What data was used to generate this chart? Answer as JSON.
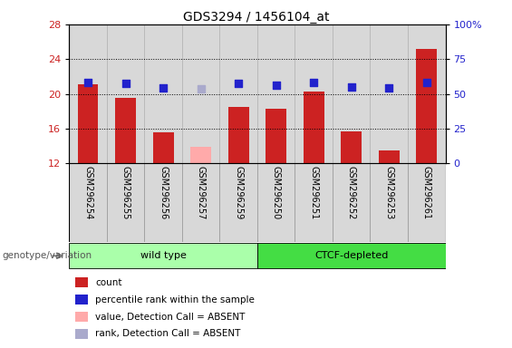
{
  "title": "GDS3294 / 1456104_at",
  "samples": [
    "GSM296254",
    "GSM296255",
    "GSM296256",
    "GSM296257",
    "GSM296259",
    "GSM296250",
    "GSM296251",
    "GSM296252",
    "GSM296253",
    "GSM296261"
  ],
  "bar_values": [
    21.1,
    19.5,
    15.6,
    null,
    18.5,
    18.3,
    20.3,
    15.7,
    13.5,
    25.2
  ],
  "absent_bar_value": 13.9,
  "absent_bar_index": 3,
  "bar_color": "#cc2222",
  "absent_bar_color": "#ffaaaa",
  "dot_values": [
    21.3,
    21.2,
    20.7,
    20.6,
    21.2,
    21.0,
    21.3,
    20.8,
    20.7,
    21.3
  ],
  "absent_dot_index": 3,
  "absent_dot_value": 20.6,
  "dot_color": "#2222cc",
  "absent_dot_color": "#aaaacc",
  "ylim_left": [
    12,
    28
  ],
  "yticks_left": [
    12,
    16,
    20,
    24,
    28
  ],
  "ylim_right": [
    0,
    100
  ],
  "yticks_right": [
    0,
    25,
    50,
    75,
    100
  ],
  "ytick_labels_right": [
    "0",
    "25",
    "50",
    "75",
    "100%"
  ],
  "groups": [
    {
      "label": "wild type",
      "start": 0,
      "end": 4,
      "color": "#aaffaa"
    },
    {
      "label": "CTCF-depleted",
      "start": 5,
      "end": 9,
      "color": "#44dd44"
    }
  ],
  "genotype_label": "genotype/variation",
  "legend_items": [
    {
      "color": "#cc2222",
      "label": "count"
    },
    {
      "color": "#2222cc",
      "label": "percentile rank within the sample"
    },
    {
      "color": "#ffaaaa",
      "label": "value, Detection Call = ABSENT"
    },
    {
      "color": "#aaaacc",
      "label": "rank, Detection Call = ABSENT"
    }
  ],
  "bg_color": "#ffffff",
  "col_bg_color": "#d8d8d8",
  "tick_color_left": "#cc2222",
  "tick_color_right": "#2222cc",
  "bar_width": 0.55,
  "dot_size": 35,
  "n_samples": 10
}
